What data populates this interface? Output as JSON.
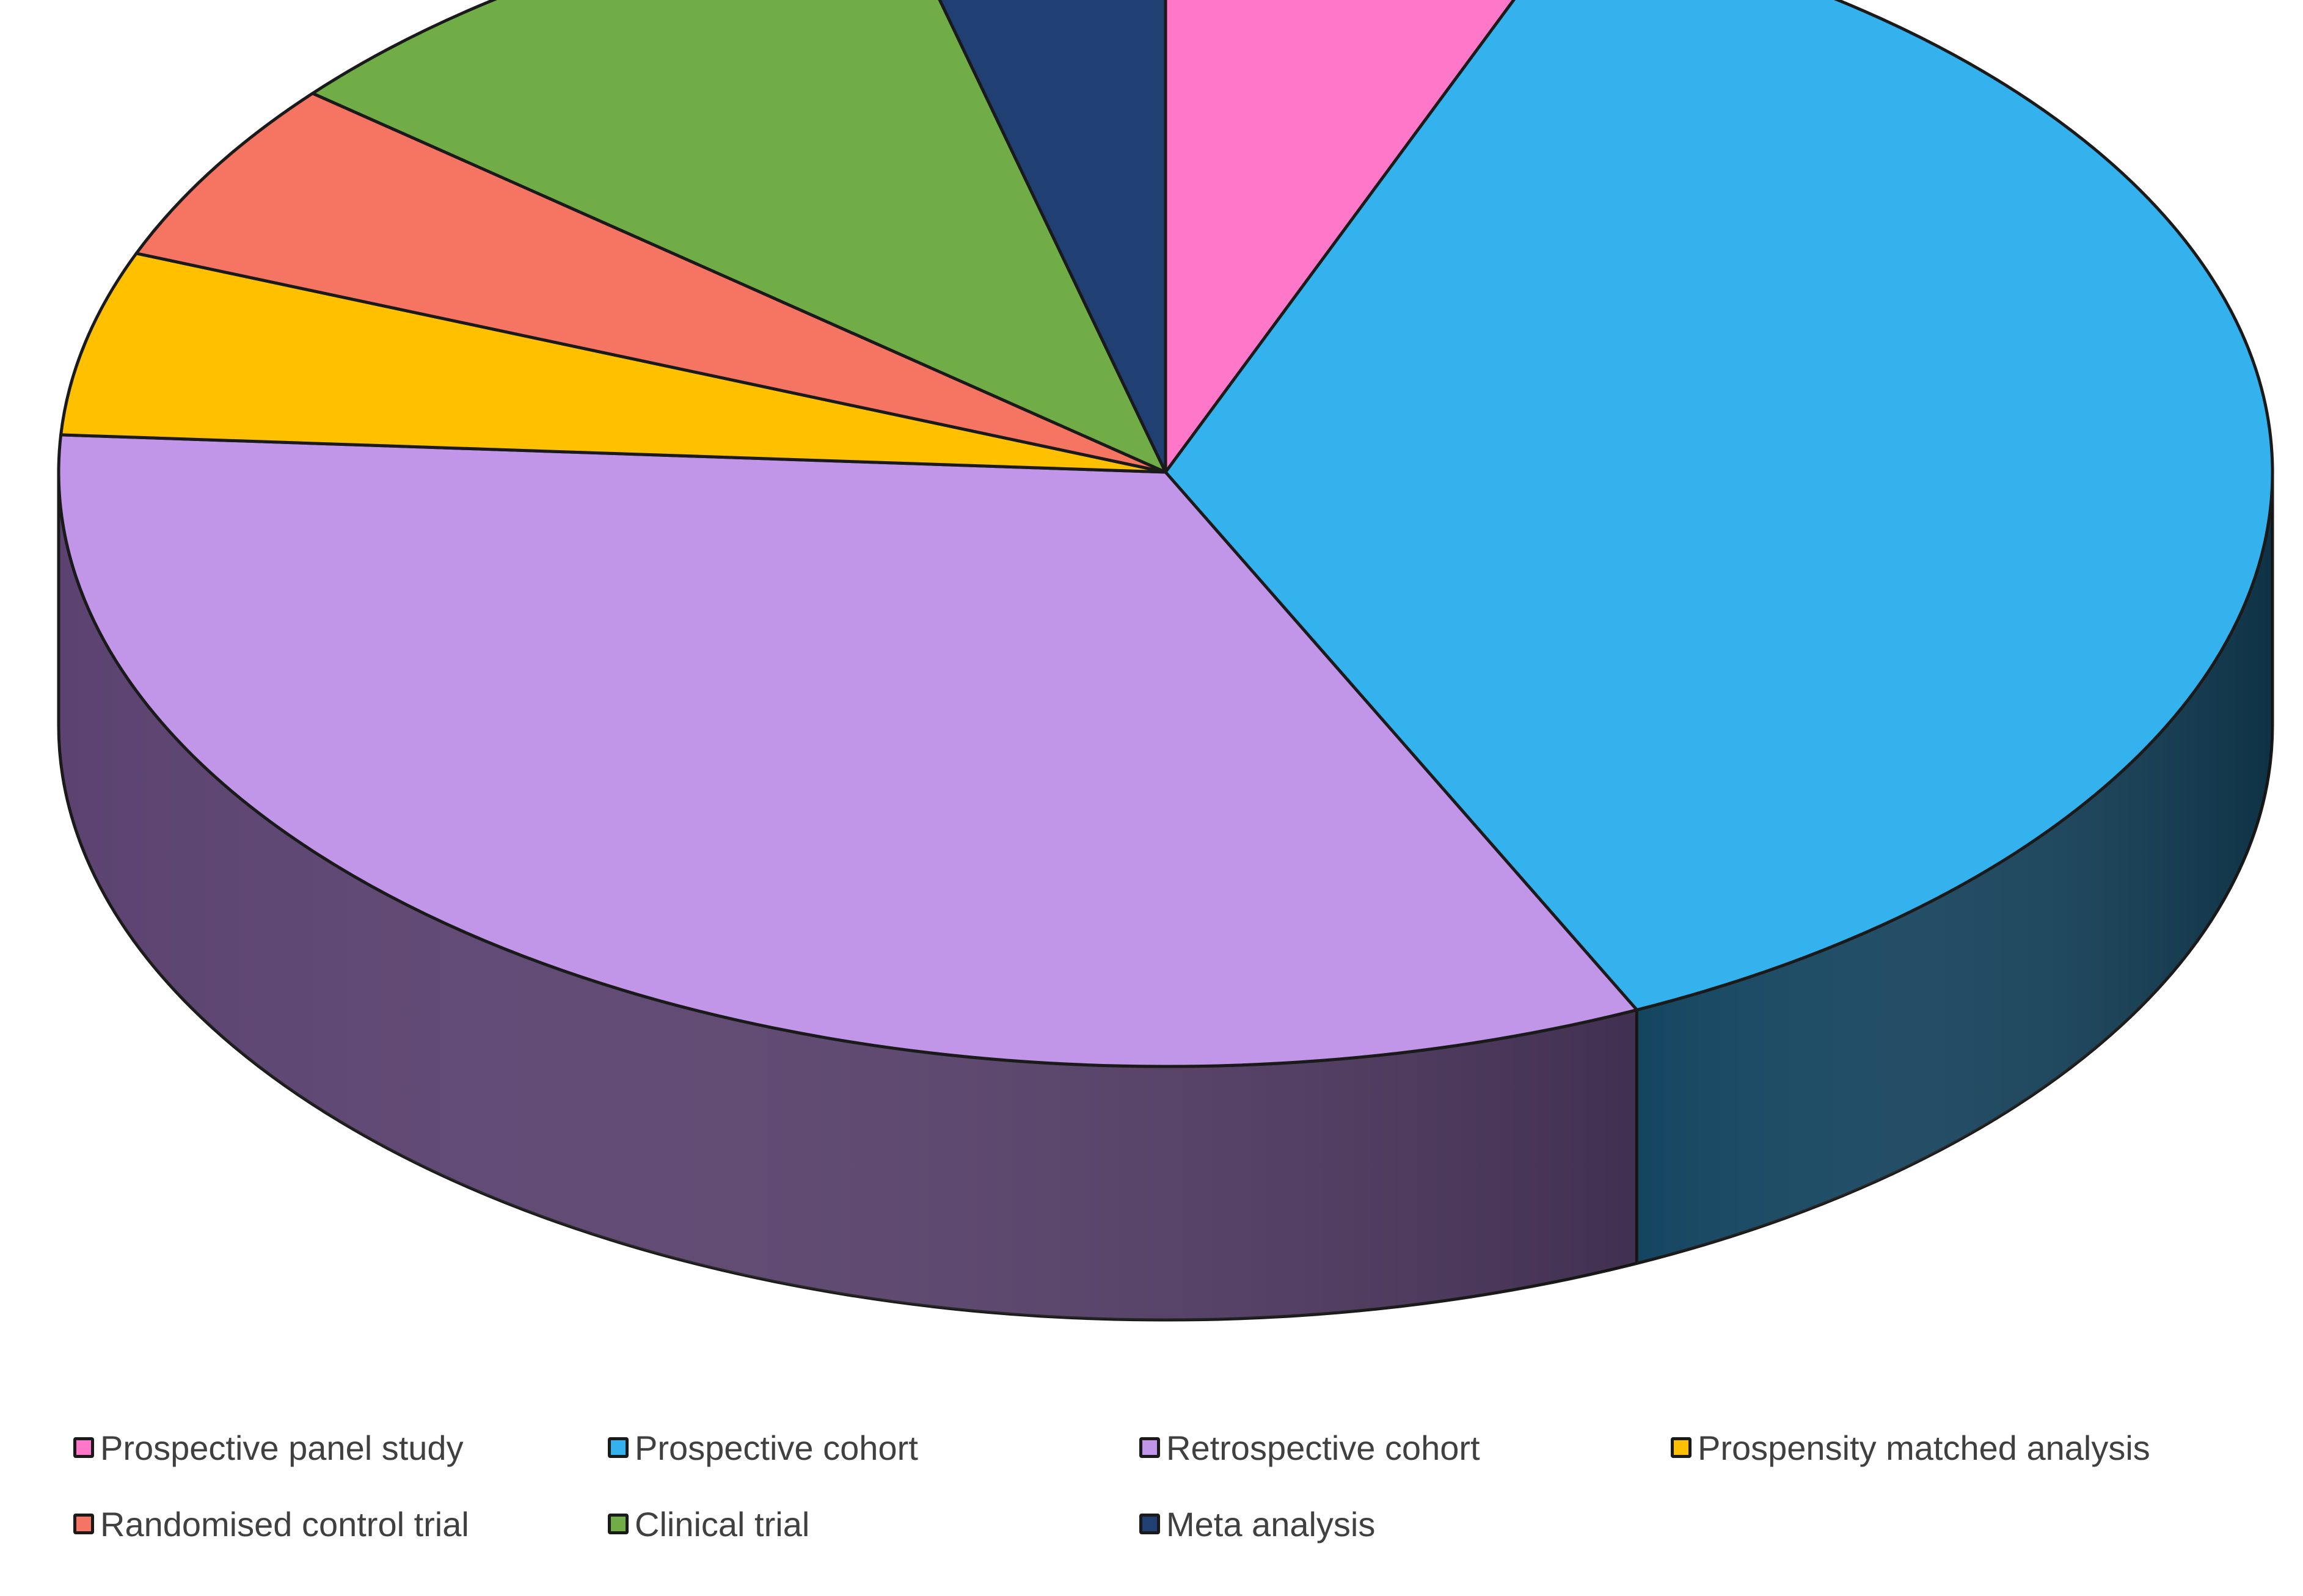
{
  "chart_data": {
    "type": "pie",
    "style": "3d",
    "unit": "percent",
    "categories": [
      "Prospective panel study",
      "Prospective cohort",
      "Retrospective cohort",
      "Prospensity matched analysis",
      "Randomised control trial",
      "Clinical trial",
      "Meta analysis"
    ],
    "values": [
      6,
      37,
      33,
      5,
      5,
      10,
      4
    ],
    "colors": [
      "#FF77C8",
      "#33B2EE",
      "#C195E8",
      "#FFC000",
      "#F57562",
      "#70AD47",
      "#203F72"
    ],
    "side_colors": [
      "#9C3F7A",
      "#144560",
      "#5B4270",
      "#8C6A00",
      "#8F3D31",
      "#3E6128",
      "#14284A"
    ],
    "start_angle_deg": 270,
    "direction": "clockwise",
    "legend_position": "bottom",
    "title": "",
    "xlabel": "",
    "ylabel": ""
  }
}
